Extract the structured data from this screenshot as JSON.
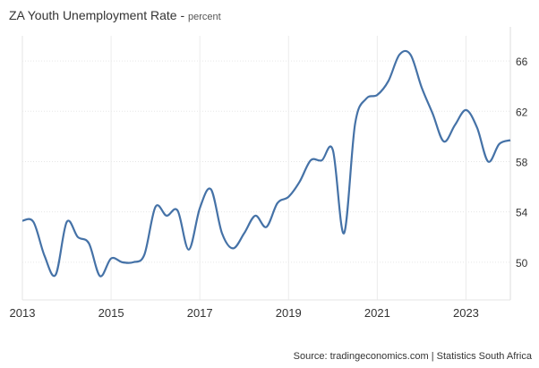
{
  "chart_data": {
    "type": "line",
    "title": "ZA Youth Unemployment Rate",
    "subtitle": "percent",
    "xlabel": "",
    "ylabel": "",
    "xlim": [
      2013,
      2024
    ],
    "ylim": [
      47,
      68
    ],
    "x_ticks": [
      "2013",
      "2015",
      "2017",
      "2019",
      "2021",
      "2023"
    ],
    "y_ticks": [
      "50",
      "54",
      "58",
      "62",
      "66"
    ],
    "grid": true,
    "color": "#4572a7",
    "series": [
      {
        "name": "ZA Youth Unemployment Rate",
        "x": [
          2013.0,
          2013.25,
          2013.5,
          2013.75,
          2014.0,
          2014.25,
          2014.5,
          2014.75,
          2015.0,
          2015.25,
          2015.5,
          2015.75,
          2016.0,
          2016.25,
          2016.5,
          2016.75,
          2017.0,
          2017.25,
          2017.5,
          2017.75,
          2018.0,
          2018.25,
          2018.5,
          2018.75,
          2019.0,
          2019.25,
          2019.5,
          2019.75,
          2020.0,
          2020.25,
          2020.5,
          2020.75,
          2021.0,
          2021.25,
          2021.5,
          2021.75,
          2022.0,
          2022.25,
          2022.5,
          2022.75,
          2023.0,
          2023.25,
          2023.5,
          2023.75,
          2024.0
        ],
        "values": [
          53.3,
          53.2,
          50.5,
          49.0,
          53.2,
          52.0,
          51.5,
          48.9,
          50.3,
          50.0,
          50.0,
          50.6,
          54.4,
          53.7,
          54.1,
          51.0,
          54.3,
          55.8,
          52.3,
          51.1,
          52.3,
          53.7,
          52.8,
          54.7,
          55.2,
          56.4,
          58.1,
          58.1,
          58.9,
          52.3,
          61.0,
          63.0,
          63.3,
          64.4,
          66.5,
          66.5,
          63.9,
          61.8,
          59.6,
          60.9,
          62.1,
          60.7,
          58.0,
          59.4,
          59.7
        ]
      }
    ]
  },
  "source": "Source: tradingeconomics.com | Statistics South Africa"
}
